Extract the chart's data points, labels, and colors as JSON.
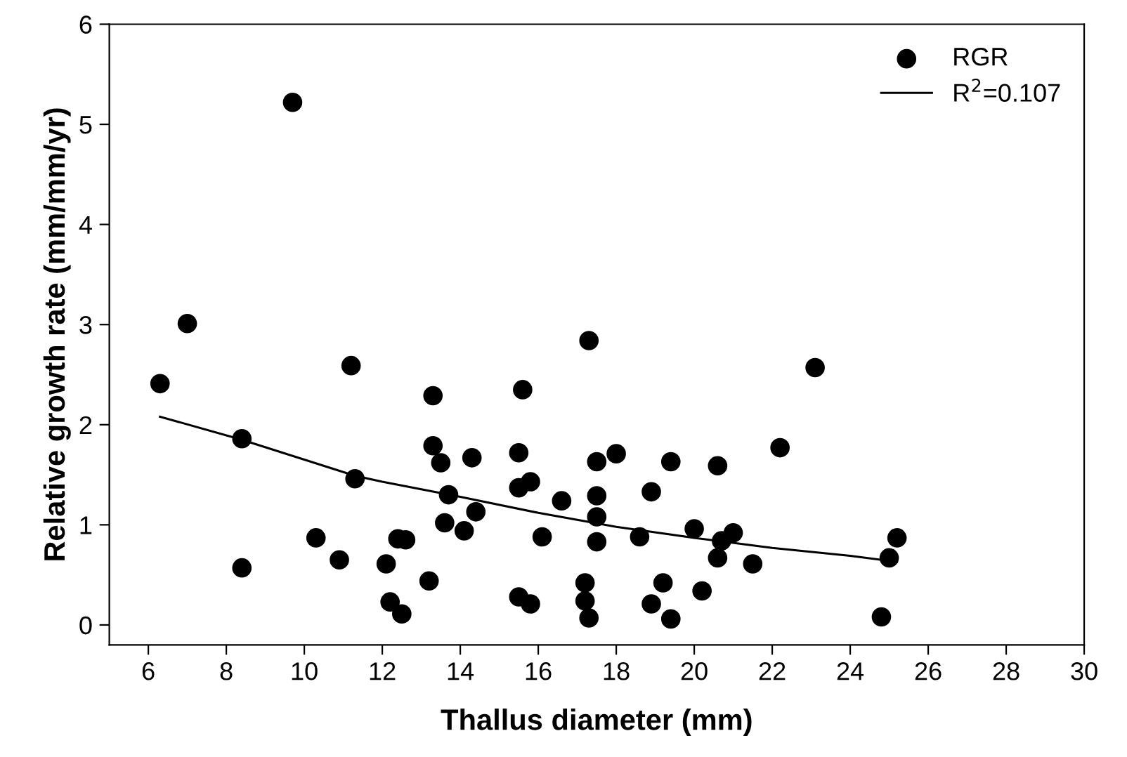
{
  "chart_data": {
    "type": "scatter",
    "xlabel": "Thallus diameter (mm)",
    "ylabel": "Relative growth rate (mm/mm/yr)",
    "xlim": [
      5,
      30
    ],
    "ylim": [
      -0.2,
      6
    ],
    "xticks": [
      6,
      8,
      10,
      12,
      14,
      16,
      18,
      20,
      22,
      24,
      26,
      28,
      30
    ],
    "yticks": [
      0,
      1,
      2,
      3,
      4,
      5,
      6
    ],
    "grid": false,
    "legend": "top right",
    "marker": "circle",
    "series": [
      {
        "name": "RGR",
        "color": "#000000",
        "x": [
          6.3,
          7.0,
          8.4,
          8.4,
          9.7,
          10.3,
          10.9,
          11.2,
          11.3,
          12.1,
          12.2,
          12.4,
          12.5,
          12.6,
          13.2,
          13.3,
          13.3,
          13.5,
          13.7,
          13.6,
          14.1,
          14.3,
          14.4,
          15.5,
          15.5,
          15.5,
          15.6,
          15.8,
          15.8,
          16.1,
          16.6,
          17.2,
          17.2,
          17.3,
          17.3,
          17.5,
          17.5,
          17.5,
          17.5,
          18.0,
          18.6,
          18.9,
          18.9,
          19.2,
          19.4,
          19.4,
          20.0,
          20.2,
          20.6,
          20.6,
          20.7,
          21.0,
          21.5,
          22.2,
          23.1,
          24.8,
          25.0,
          25.2
        ],
        "values": [
          2.41,
          3.01,
          1.86,
          0.57,
          5.22,
          0.87,
          0.65,
          2.59,
          1.46,
          0.61,
          0.23,
          0.86,
          0.11,
          0.85,
          0.44,
          2.29,
          1.79,
          1.62,
          1.3,
          1.02,
          0.94,
          1.67,
          1.13,
          1.72,
          1.37,
          0.28,
          2.35,
          1.43,
          0.21,
          0.88,
          1.24,
          0.42,
          0.24,
          0.07,
          2.84,
          1.63,
          1.29,
          1.08,
          0.83,
          1.71,
          0.88,
          1.33,
          0.21,
          0.42,
          1.63,
          0.06,
          0.96,
          0.34,
          1.59,
          0.67,
          0.84,
          0.92,
          0.61,
          1.77,
          2.57,
          0.08,
          0.67,
          0.87
        ]
      },
      {
        "name": "R$^{2}$=0.107",
        "type": "line",
        "color": "#000000",
        "marker": "none",
        "line_style": "solid",
        "x": [
          6.3,
          8.4,
          11.3,
          12,
          14,
          16,
          18,
          20,
          22,
          24,
          25.2
        ],
        "values": [
          2.08,
          1.85,
          1.49,
          1.43,
          1.28,
          1.12,
          0.98,
          0.87,
          0.77,
          0.69,
          0.63
        ]
      }
    ]
  }
}
